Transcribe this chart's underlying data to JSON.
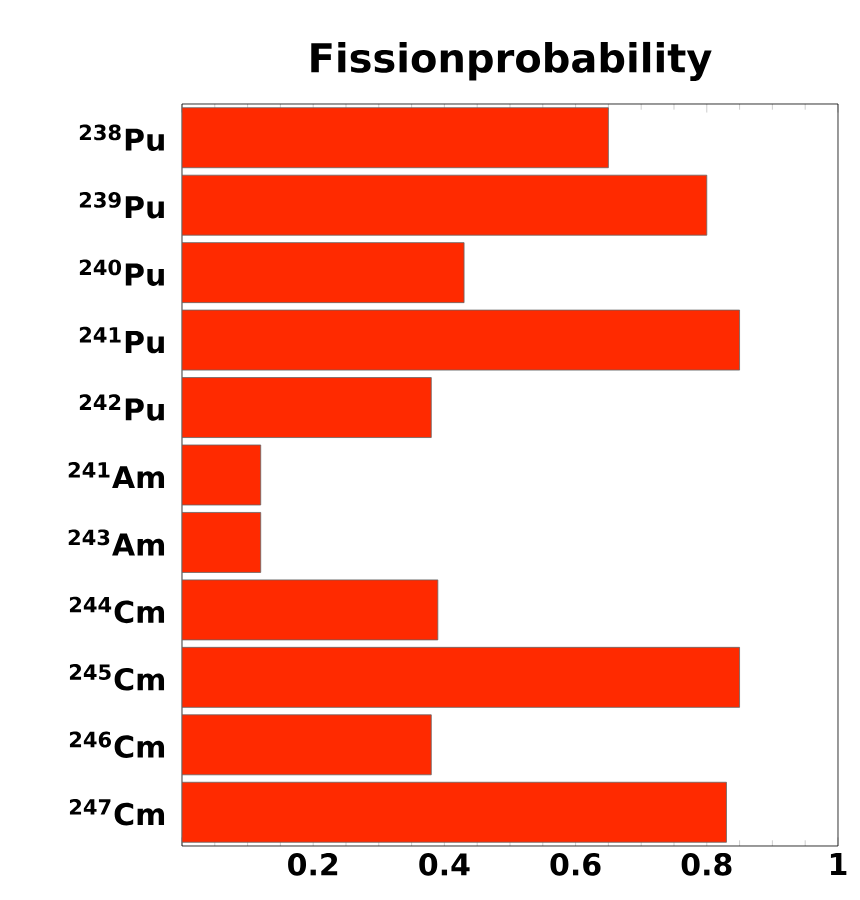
{
  "chart_data": {
    "type": "bar",
    "orientation": "horizontal",
    "title": "Fissionprobability",
    "categories": [
      "$^{238}$Pu",
      "$^{239}$Pu",
      "$^{240}$Pu",
      "$^{241}$Pu",
      "$^{242}$Pu",
      "$^{241}$Am",
      "$^{243}$Am",
      "$^{244}$Cm",
      "$^{245}$Cm",
      "$^{246}$Cm",
      "$^{247}$Cm"
    ],
    "values": [
      0.65,
      0.8,
      0.43,
      0.85,
      0.38,
      0.12,
      0.12,
      0.39,
      0.85,
      0.38,
      0.83
    ],
    "color": "#ff2a00",
    "xlim": [
      0,
      1
    ],
    "xticks": [
      {
        "value": 0,
        "label": null
      },
      0.2,
      0.4,
      0.6,
      0.8,
      1
    ]
  }
}
